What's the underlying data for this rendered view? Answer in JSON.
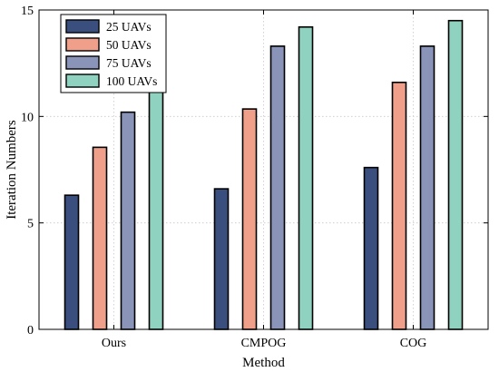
{
  "chart_data": {
    "type": "bar",
    "categories": [
      "Ours",
      "CMPOG",
      "COG"
    ],
    "series": [
      {
        "name": "25 UAVs",
        "values": [
          6.3,
          6.6,
          7.6
        ],
        "color": "#3a4f7e"
      },
      {
        "name": "50 UAVs",
        "values": [
          8.55,
          10.35,
          11.6
        ],
        "color": "#f0a08a"
      },
      {
        "name": "75 UAVs",
        "values": [
          10.2,
          13.3,
          13.3
        ],
        "color": "#8a93b8"
      },
      {
        "name": "100 UAVs",
        "values": [
          11.3,
          14.2,
          14.5
        ],
        "color": "#8fd2c0"
      }
    ],
    "xlabel": "Method",
    "ylabel": "Iteration Numbers",
    "ylim": [
      0,
      15
    ],
    "yticks": [
      0,
      5,
      10,
      15
    ],
    "grid": true,
    "legend_position": "top-left"
  }
}
